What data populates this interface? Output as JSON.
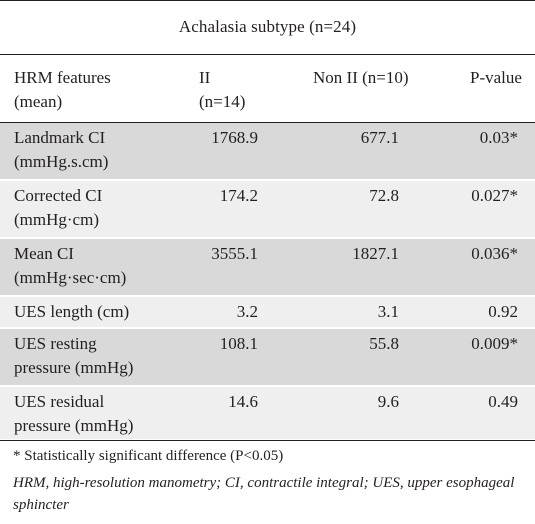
{
  "title": "Achalasia subtype (n=24)",
  "headers": {
    "feature": "HRM features",
    "feature_sub": "(mean)",
    "ii": "II",
    "ii_sub": "(n=14)",
    "non_ii": "Non II (n=10)",
    "p": "P-value"
  },
  "rows": [
    {
      "label_1": "Landmark CI",
      "label_2": "(mmHg.s.cm)",
      "ii": "1768.9",
      "non_ii": "677.1",
      "p": "0.03*"
    },
    {
      "label_1": "Corrected CI",
      "label_2": "(mmHg·cm)",
      "ii": "174.2",
      "non_ii": "72.8",
      "p": "0.027*"
    },
    {
      "label_1": "Mean CI",
      "label_2": "(mmHg·sec·cm)",
      "ii": "3555.1",
      "non_ii": "1827.1",
      "p": "0.036*"
    },
    {
      "label_1": "UES length (cm)",
      "label_2": "",
      "ii": "3.2",
      "non_ii": "3.1",
      "p": "0.92"
    },
    {
      "label_1": "UES resting",
      "label_2": "pressure (mmHg)",
      "ii": "108.1",
      "non_ii": "55.8",
      "p": "0.009*"
    },
    {
      "label_1": "UES residual",
      "label_2": "pressure (mmHg)",
      "ii": "14.6",
      "non_ii": "9.6",
      "p": "0.49"
    }
  ],
  "footnote_star": "* Statistically significant difference (P<0.05)",
  "footnote_abbr": "HRM, high-resolution manometry; CI, contractile integral; UES, upper esophageal sphincter",
  "colors": {
    "dark_row": "#d9d9da",
    "light_row": "#efeff0",
    "text": "#231f20"
  }
}
